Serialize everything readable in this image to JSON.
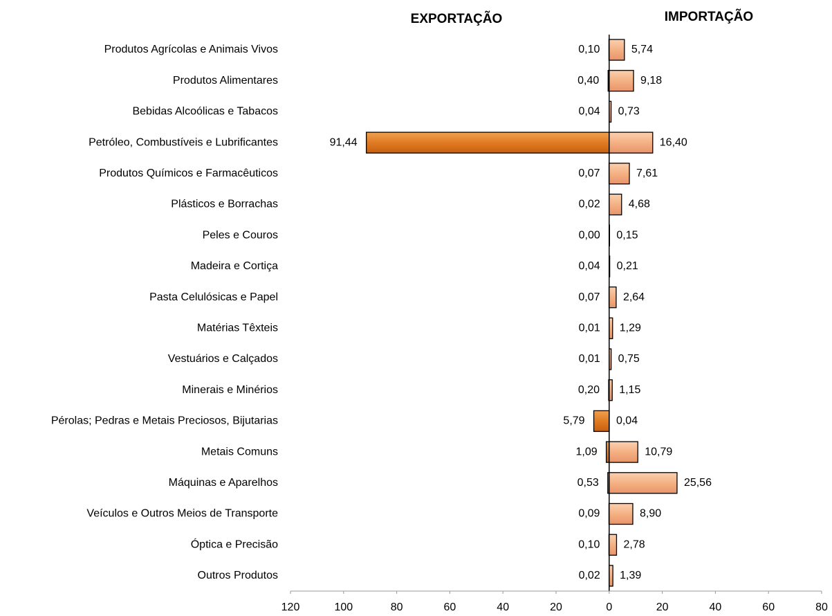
{
  "chart_data": {
    "type": "butterfly_bar",
    "categories": [
      "Produtos Agrícolas e Animais Vivos",
      "Produtos Alimentares",
      "Bebidas Alcoólicas e Tabacos",
      "Petróleo, Combustíveis e Lubrificantes",
      "Produtos Químicos e Farmacêuticos",
      "Plásticos e Borrachas",
      "Peles e Couros",
      "Madeira e Cortiça",
      "Pasta Celulósicas e Papel",
      "Matérias Têxteis",
      "Vestuários e Calçados",
      "Minerais e Minérios",
      "Pérolas; Pedras e Metais Preciosos, Bijutarias",
      "Metais Comuns",
      "Máquinas e Aparelhos",
      "Veículos e Outros Meios de Transporte",
      "Óptica e Precisão",
      "Outros Produtos"
    ],
    "series": [
      {
        "name": "EXPORTAÇÃO",
        "color": "#e07b24",
        "side": "left",
        "values": [
          0.1,
          0.4,
          0.04,
          91.44,
          0.07,
          0.02,
          0.0,
          0.04,
          0.07,
          0.01,
          0.01,
          0.2,
          5.79,
          1.09,
          0.53,
          0.09,
          0.1,
          0.02
        ],
        "value_labels": [
          "0,10",
          "0,40",
          "0,04",
          "91,44",
          "0,07",
          "0,02",
          "0,00",
          "0,04",
          "0,07",
          "0,01",
          "0,01",
          "0,20",
          "5,79",
          "1,09",
          "0,53",
          "0,09",
          "0,10",
          "0,02"
        ]
      },
      {
        "name": "IMPORTAÇÃO",
        "color": "#f4b183",
        "side": "right",
        "values": [
          5.74,
          9.18,
          0.73,
          16.4,
          7.61,
          4.68,
          0.15,
          0.21,
          2.64,
          1.29,
          0.75,
          1.15,
          0.04,
          10.79,
          25.56,
          8.9,
          2.78,
          1.39
        ],
        "value_labels": [
          "5,74",
          "9,18",
          "0,73",
          "16,40",
          "7,61",
          "4,68",
          "0,15",
          "0,21",
          "2,64",
          "1,29",
          "0,75",
          "1,15",
          "0,04",
          "10,79",
          "25,56",
          "8,90",
          "2,78",
          "1,39"
        ]
      }
    ],
    "xlim": [
      -120,
      80
    ],
    "xticks": [
      {
        "value": -120,
        "label": "120"
      },
      {
        "value": -100,
        "label": "100"
      },
      {
        "value": -80,
        "label": "80"
      },
      {
        "value": -60,
        "label": "60"
      },
      {
        "value": -40,
        "label": "40"
      },
      {
        "value": -20,
        "label": "20"
      },
      0,
      20,
      40,
      60,
      80
    ]
  }
}
